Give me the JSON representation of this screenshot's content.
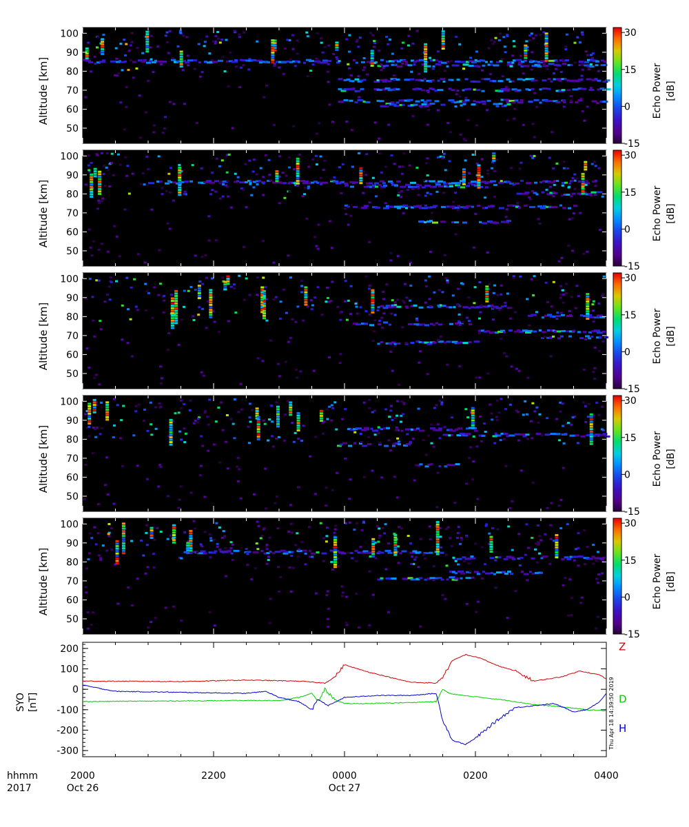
{
  "panels": [
    {
      "ylabel": "Altitude [km]",
      "cbar_label_1": "Echo Power",
      "cbar_label_2": "[dB]"
    },
    {
      "ylabel": "Altitude [km]",
      "cbar_label_1": "Echo Power",
      "cbar_label_2": "[dB]"
    },
    {
      "ylabel": "Altitude [km]",
      "cbar_label_1": "Echo Power",
      "cbar_label_2": "[dB]"
    },
    {
      "ylabel": "Altitude [km]",
      "cbar_label_1": "Echo Power",
      "cbar_label_2": "[dB]"
    },
    {
      "ylabel": "Altitude [km]",
      "cbar_label_1": "Echo Power",
      "cbar_label_2": "[dB]"
    }
  ],
  "magnetometer": {
    "ylabel_1": "SYO",
    "ylabel_2": "[nT]",
    "timestamp": "Thu Apr 18 14:39:50 2019"
  },
  "time_axis": {
    "label_row_1": "hhmm",
    "label_row_2": "2017",
    "date_labels": [
      {
        "text": "Oct 26",
        "tick_index": 0
      },
      {
        "text": "Oct 27",
        "tick_index": 2
      }
    ]
  },
  "chart_data": [
    {
      "type": "heatmap",
      "description_of_axes": "x: UT time 2000 Oct 26 to 0400 Oct 27; y: altitude (km)",
      "x_range_hours": [
        20,
        28
      ],
      "xticks": [
        "2000",
        "2200",
        "0000",
        "0200",
        "0400"
      ],
      "y_range_km": [
        42,
        103
      ],
      "yticks": [
        50,
        60,
        70,
        80,
        90,
        100
      ],
      "colorbar": {
        "range_dB": [
          -15,
          32
        ],
        "ticks": [
          -15,
          0,
          15,
          30
        ]
      },
      "layers_km_by_panel": [
        [
          [
            85,
            20.0,
            28.0
          ],
          [
            83,
            24.5,
            28.0
          ],
          [
            75,
            23.9,
            28.0
          ],
          [
            70,
            23.9,
            28.0
          ],
          [
            64,
            23.9,
            28.0
          ],
          [
            62,
            24.5,
            26.5
          ]
        ],
        [
          [
            86,
            21.0,
            28.0
          ],
          [
            84,
            24.0,
            26.3
          ],
          [
            80,
            26.5,
            28.0
          ],
          [
            73,
            24.0,
            27.5
          ],
          [
            65,
            25.0,
            26.5
          ]
        ],
        [
          [
            85,
            24.5,
            26.5
          ],
          [
            80,
            26.8,
            28.0
          ],
          [
            76,
            24.0,
            26.0
          ],
          [
            72,
            26.0,
            28.0
          ],
          [
            69,
            27.0,
            28.0
          ],
          [
            66,
            24.5,
            26.0
          ]
        ],
        [
          [
            85,
            24.0,
            26.0
          ],
          [
            82,
            25.5,
            28.0
          ],
          [
            77,
            23.8,
            25.0
          ],
          [
            66,
            25.1,
            25.7
          ]
        ],
        [
          [
            85,
            21.5,
            25.5
          ],
          [
            82,
            25.5,
            28.0
          ],
          [
            74,
            25.6,
            27.0
          ],
          [
            71,
            24.5,
            26.0
          ]
        ]
      ]
    },
    {
      "type": "line",
      "x_range_hours": [
        20,
        28
      ],
      "xticks": [
        "2000",
        "2200",
        "0000",
        "0200",
        "0400"
      ],
      "ylim": [
        -330,
        230
      ],
      "yticks": [
        -300,
        -200,
        -100,
        0,
        100,
        200
      ],
      "series": [
        {
          "name": "Z",
          "color": "#cc0000",
          "x": [
            20.0,
            21.5,
            22.5,
            23.3,
            23.7,
            23.85,
            24.0,
            24.3,
            24.8,
            25.0,
            25.4,
            25.5,
            25.65,
            25.85,
            26.1,
            26.3,
            26.6,
            26.9,
            27.3,
            27.6,
            27.9,
            28.0
          ],
          "y": [
            40,
            38,
            45,
            40,
            30,
            60,
            120,
            90,
            50,
            35,
            30,
            60,
            140,
            170,
            150,
            120,
            90,
            40,
            60,
            90,
            70,
            50
          ]
        },
        {
          "name": "D",
          "color": "#00cc00",
          "x": [
            20.0,
            21.0,
            22.5,
            23.0,
            23.3,
            23.5,
            23.6,
            23.7,
            23.85,
            24.0,
            24.3,
            25.0,
            25.4,
            25.5,
            25.6,
            25.8,
            26.1,
            26.5,
            26.9,
            27.3,
            27.7,
            28.0
          ],
          "y": [
            -60,
            -58,
            -55,
            -55,
            -40,
            -20,
            -60,
            0,
            -50,
            -70,
            -70,
            -65,
            -60,
            0,
            -20,
            -30,
            -40,
            -55,
            -75,
            -85,
            -100,
            -105
          ]
        },
        {
          "name": "H",
          "color": "#0000cc",
          "x": [
            20.0,
            20.5,
            21.5,
            22.5,
            22.8,
            23.0,
            23.3,
            23.5,
            23.6,
            23.75,
            24.0,
            24.5,
            25.0,
            25.4,
            25.5,
            25.65,
            25.85,
            26.0,
            26.3,
            26.6,
            26.9,
            27.2,
            27.5,
            27.7,
            27.9,
            28.0
          ],
          "y": [
            20,
            -10,
            -15,
            -20,
            -10,
            -40,
            -60,
            -100,
            -50,
            -80,
            -40,
            -30,
            -30,
            -20,
            -150,
            -250,
            -270,
            -240,
            -160,
            -90,
            -80,
            -70,
            -110,
            -100,
            -60,
            -20
          ]
        }
      ]
    }
  ]
}
